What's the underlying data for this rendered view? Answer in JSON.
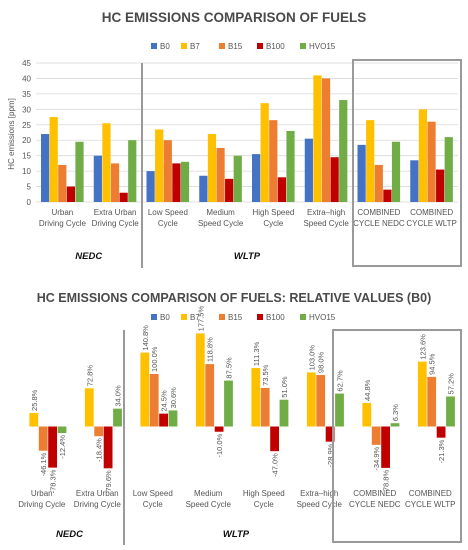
{
  "colors": {
    "B0": "#4472C4",
    "B7": "#FFC000",
    "B15": "#ED7D31",
    "B100": "#C00000",
    "HVO15": "#70AD47",
    "grid": "#d9d9d9",
    "frame": "#9a9a9a"
  },
  "chart_data": [
    {
      "type": "bar",
      "title": "HC EMISSIONS COMPARISON OF FUELS",
      "ylabel": "HC emissions [ppm]",
      "ylim": [
        0,
        45
      ],
      "yticks": [
        0,
        5,
        10,
        15,
        20,
        25,
        30,
        35,
        40,
        45
      ],
      "grid": true,
      "legend": "top",
      "categories": [
        "Urban Driving Cycle",
        "Extra Urban Driving Cycle",
        "Low Speed Cycle",
        "Medium Speed Cycle",
        "High Speed Cycle",
        "Extra-high Speed Cycle",
        "COMBINED CYCLE NEDC",
        "COMBINED CYCLE WLTP"
      ],
      "category_lines": [
        [
          "Urban",
          "Driving Cycle"
        ],
        [
          "Extra Urban",
          "Driving Cycle"
        ],
        [
          "Low Speed",
          "Cycle"
        ],
        [
          "Medium",
          "Speed Cycle"
        ],
        [
          "High Speed",
          "Cycle"
        ],
        [
          "Extra–high",
          "Speed Cycle"
        ],
        [
          "COMBINED",
          "CYCLE NEDC"
        ],
        [
          "COMBINED",
          "CYCLE WLTP"
        ]
      ],
      "series": [
        {
          "name": "B0",
          "values": [
            22,
            15,
            10,
            8.5,
            15.5,
            20.5,
            18.5,
            13.5
          ]
        },
        {
          "name": "B7",
          "values": [
            27.5,
            25.5,
            23.5,
            22,
            32,
            41,
            26.5,
            30
          ]
        },
        {
          "name": "B15",
          "values": [
            12,
            12.5,
            20,
            17.5,
            26.5,
            40,
            12,
            26
          ]
        },
        {
          "name": "B100",
          "values": [
            5,
            3,
            12.5,
            7.5,
            8,
            14.5,
            4,
            10.5
          ]
        },
        {
          "name": "HVO15",
          "values": [
            19.5,
            20,
            13,
            15,
            23,
            33,
            19.5,
            21
          ]
        }
      ],
      "groups": [
        {
          "label": "NEDC",
          "from": 0,
          "to": 1
        },
        {
          "label": "WLTP",
          "from": 2,
          "to": 5
        }
      ]
    },
    {
      "type": "bar",
      "title": "HC EMISSIONS COMPARISON OF FUELS: RELATIVE VALUES (B0)",
      "ylim": [
        -100,
        180
      ],
      "grid": false,
      "legend": "top",
      "categories": [
        "Urban Driving Cycle",
        "Extra Urban Driving Cycle",
        "Low Speed Cycle",
        "Medium Speed Cycle",
        "High Speed Cycle",
        "Extra-high Speed Cycle",
        "COMBINED CYCLE NEDC",
        "COMBINED CYCLE WLTP"
      ],
      "category_lines": [
        [
          "Urban",
          "Driving Cycle"
        ],
        [
          "Extra Urban",
          "Driving Cycle"
        ],
        [
          "Low Speed",
          "Cycle"
        ],
        [
          "Medium",
          "Speed Cycle"
        ],
        [
          "High Speed",
          "Cycle"
        ],
        [
          "Extra–high",
          "Speed Cycle"
        ],
        [
          "COMBINED",
          "CYCLE NEDC"
        ],
        [
          "COMBINED",
          "CYCLE WLTP"
        ]
      ],
      "series": [
        {
          "name": "B0",
          "values": [
            0,
            0,
            0,
            0,
            0,
            0,
            0,
            0
          ]
        },
        {
          "name": "B7",
          "values": [
            25.8,
            72.8,
            140.8,
            177.5,
            111.3,
            103.0,
            44.8,
            123.6
          ]
        },
        {
          "name": "B15",
          "values": [
            -46.1,
            -18.4,
            100.0,
            118.8,
            73.5,
            98.0,
            -34.9,
            94.5
          ]
        },
        {
          "name": "B100",
          "values": [
            -78.3,
            -79.6,
            24.5,
            -10.0,
            -47.0,
            -28.9,
            -78.8,
            -21.3
          ]
        },
        {
          "name": "HVO15",
          "values": [
            -12.4,
            34.0,
            30.6,
            87.5,
            51.0,
            62.7,
            6.3,
            57.2
          ]
        }
      ],
      "data_labels": [
        [
          "",
          "25.8%",
          "-46.1%",
          "-78.3%",
          "-12.4%"
        ],
        [
          "",
          "72.8%",
          "-18.4%",
          "-79.6%",
          "34.0%"
        ],
        [
          "",
          "140.8%",
          "100.0%",
          "24.5%",
          "30.6%"
        ],
        [
          "",
          "177.5%",
          "118.8%",
          "-10.0%",
          "87.5%"
        ],
        [
          "",
          "111.3%",
          "73.5%",
          "-47.0%",
          "51.0%"
        ],
        [
          "",
          "103.0%",
          "98.0%",
          "-28.9%",
          "62.7%"
        ],
        [
          "",
          "44.8%",
          "-34.9%",
          "-78.8%",
          "6.3%"
        ],
        [
          "",
          "123.6%",
          "94.5%",
          "-21.3%",
          "57.2%"
        ]
      ],
      "groups": [
        {
          "label": "NEDC",
          "from": 0,
          "to": 1
        },
        {
          "label": "WLTP",
          "from": 2,
          "to": 5
        }
      ]
    }
  ]
}
